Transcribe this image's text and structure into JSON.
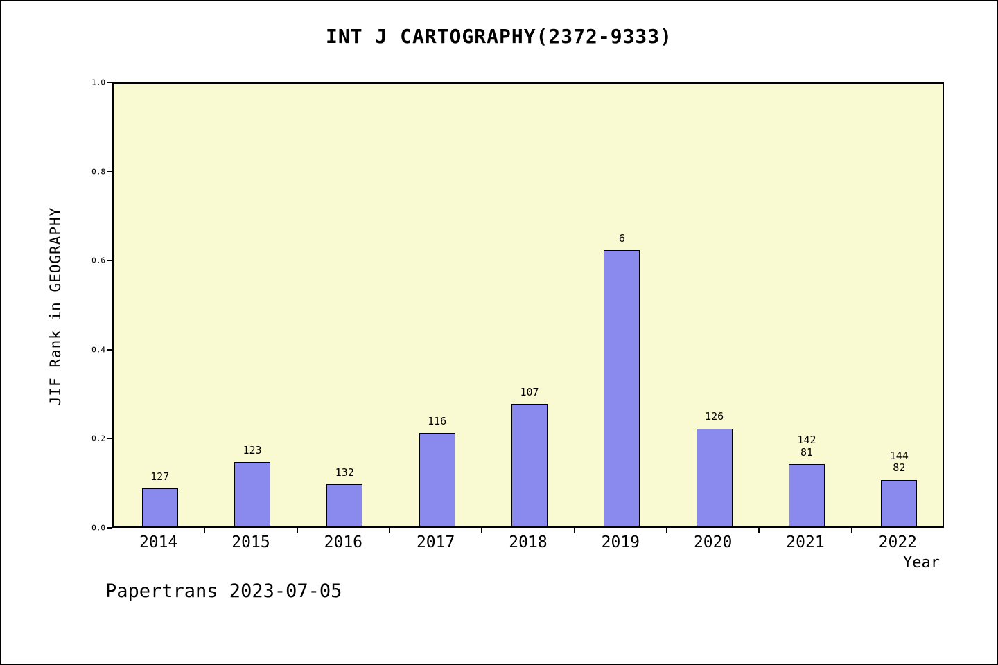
{
  "chart_data": {
    "type": "bar",
    "title": "INT J CARTOGRAPHY(2372-9333)",
    "xlabel": "Year",
    "ylabel": "JIF Rank in GEOGRAPHY",
    "ylim": [
      0,
      1.0
    ],
    "ytick_labels": [
      "0.0",
      "0.2",
      "0.4",
      "0.6",
      "0.8",
      "1.0"
    ],
    "categories": [
      "2014",
      "2015",
      "2016",
      "2017",
      "2018",
      "2019",
      "2020",
      "2021",
      "2022"
    ],
    "values": [
      0.085,
      0.145,
      0.095,
      0.21,
      0.275,
      0.62,
      0.22,
      0.14,
      0.105
    ],
    "bar_labels": [
      "127",
      "123",
      "132",
      "116",
      "107",
      "6",
      "126",
      "142\n81",
      "144\n82"
    ],
    "grid": false,
    "legend_position": "none",
    "bar_color": "#8a8aee",
    "bar_edge_color": "#000000",
    "plot_background": "#fafad2"
  },
  "footer": {
    "text": "Papertrans 2023-07-05"
  }
}
